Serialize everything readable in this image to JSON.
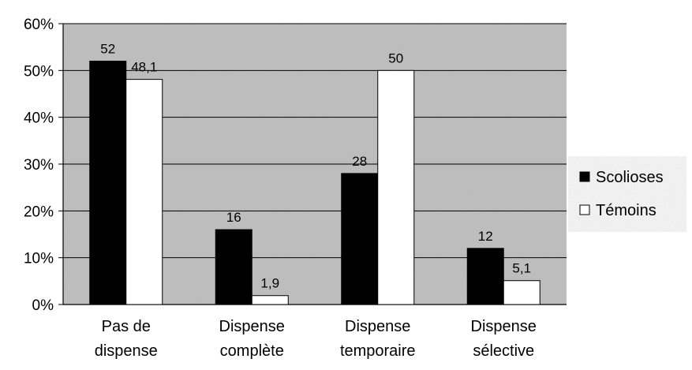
{
  "chart_data": {
    "type": "bar",
    "categories": [
      [
        "Pas de",
        "dispense"
      ],
      [
        "Dispense",
        "complète"
      ],
      [
        "Dispense",
        "temporaire"
      ],
      [
        "Dispense",
        "sélective"
      ]
    ],
    "series": [
      {
        "name": "Scolioses",
        "values": [
          52,
          16,
          28,
          12
        ],
        "labels": [
          "52",
          "16",
          "28",
          "12"
        ],
        "color": "#000000"
      },
      {
        "name": "Témoins",
        "values": [
          48.1,
          1.9,
          50,
          5.1
        ],
        "labels": [
          "48,1",
          "1,9",
          "50",
          "5,1"
        ],
        "color": "#ffffff"
      }
    ],
    "ylim": [
      0,
      60
    ],
    "yticks": [
      "0%",
      "10%",
      "20%",
      "30%",
      "40%",
      "50%",
      "60%"
    ],
    "grid": true,
    "legend_position": "right",
    "plot_background": "#bdbdbd"
  }
}
